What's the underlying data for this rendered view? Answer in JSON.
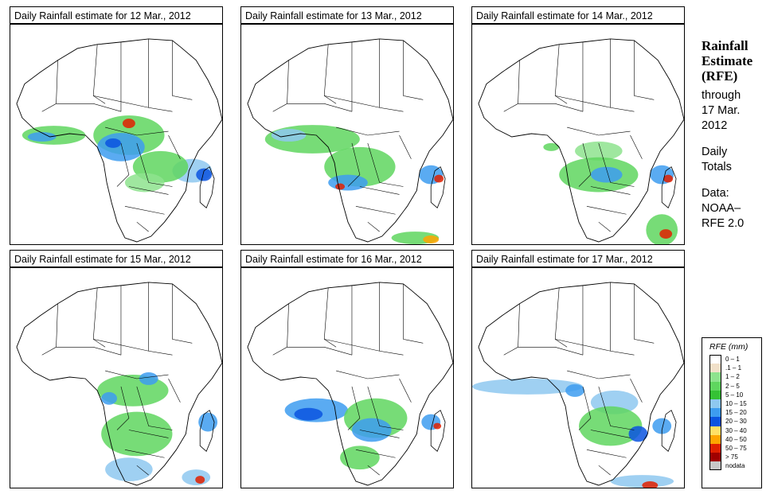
{
  "panels": [
    {
      "title_prefix": "Daily Rainfall estimate for ",
      "date": "12 Mar., 2012"
    },
    {
      "title_prefix": "Daily Rainfall estimate for ",
      "date": "13 Mar., 2012"
    },
    {
      "title_prefix": "Daily Rainfall estimate for ",
      "date": "14 Mar., 2012"
    },
    {
      "title_prefix": "Daily Rainfall estimate for ",
      "date": "15 Mar., 2012"
    },
    {
      "title_prefix": "Daily Rainfall estimate for ",
      "date": "16 Mar., 2012"
    },
    {
      "title_prefix": "Daily Rainfall estimate for ",
      "date": "17 Mar., 2012"
    }
  ],
  "sidebar": {
    "title_line1": "Rainfall",
    "title_line2": "Estimate",
    "title_line3": "(RFE)",
    "through_line1": "through",
    "through_line2": "17 Mar.",
    "through_line3": "2012",
    "totals_line1": "Daily",
    "totals_line2": "Totals",
    "data_line1": "Data:",
    "data_line2": "NOAA–",
    "data_line3": "RFE 2.0"
  },
  "legend": {
    "title": "RFE (mm)",
    "items": [
      {
        "label": "0 – 1",
        "color": "#ffffff"
      },
      {
        "label": ".1 – 1",
        "color": "#f1e0c9"
      },
      {
        "label": "1 – 2",
        "color": "#8ee38e"
      },
      {
        "label": "2 – 5",
        "color": "#5fd65f"
      },
      {
        "label": "5 – 10",
        "color": "#35c235"
      },
      {
        "label": "10 – 15",
        "color": "#8ec8f0"
      },
      {
        "label": "15 – 20",
        "color": "#3d9cf0"
      },
      {
        "label": "20 – 30",
        "color": "#0b54e0"
      },
      {
        "label": "30 – 40",
        "color": "#ffe066"
      },
      {
        "label": "40 – 50",
        "color": "#ffa500"
      },
      {
        "label": "50 – 75",
        "color": "#e02000"
      },
      {
        "label": "> 75",
        "color": "#a00000"
      },
      {
        "label": "nodata",
        "color": "#c8c8c8"
      }
    ]
  }
}
